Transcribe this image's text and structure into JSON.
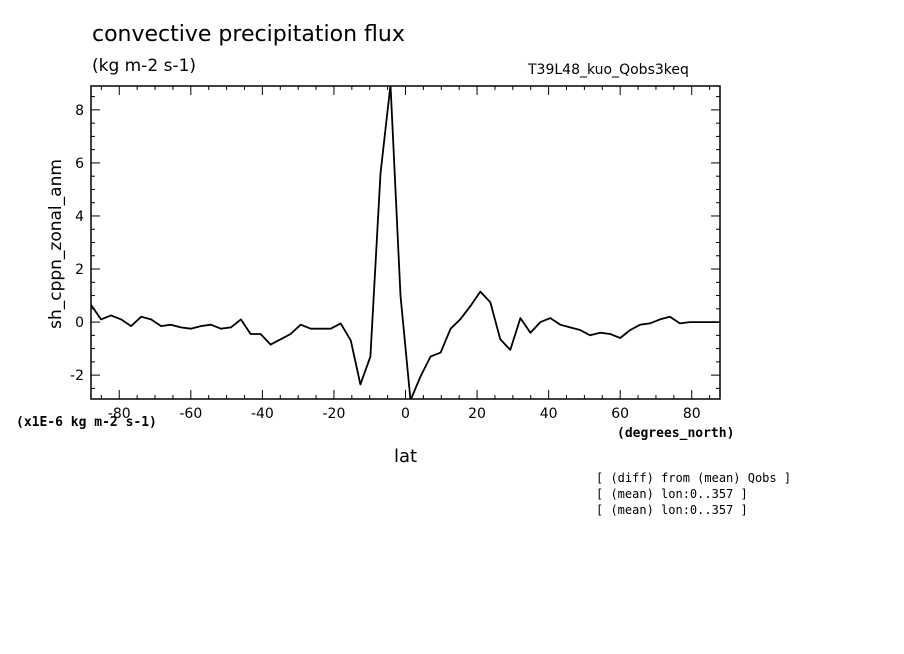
{
  "chart_data": {
    "type": "line",
    "title": "convective precipitation flux",
    "subtitle": "(kg m-2 s-1)",
    "run_label": "T39L48_kuo_Qobs3keq",
    "xlabel": "lat",
    "ylabel": "sh_cppn_zonal_anm",
    "scale_note": "(x1E-6 kg m-2 s-1)",
    "x_unit": "(degrees_north)",
    "notes": [
      "[ (diff) from (mean) Qobs ]",
      "[ (mean) lon:0..357 ]",
      "[ (mean) lon:0..357 ]"
    ],
    "xlim": [
      -87.9,
      87.9
    ],
    "ylim": [
      -2.9,
      8.9
    ],
    "x_ticks": [
      -80,
      -60,
      -40,
      -20,
      0,
      20,
      40,
      60,
      80
    ],
    "x_tick_labels": [
      "-80",
      "-60",
      "-40",
      "-20",
      "0",
      "20",
      "40",
      "60",
      "80"
    ],
    "y_ticks": [
      -2,
      0,
      2,
      4,
      6,
      8
    ],
    "y_tick_labels": [
      "-2",
      "0",
      "2",
      "4",
      "6",
      "8"
    ],
    "grid": false,
    "series": [
      {
        "x": [
          -87.9,
          -85.1,
          -82.3,
          -79.5,
          -76.7,
          -73.9,
          -71.1,
          -68.3,
          -65.6,
          -62.8,
          -60.0,
          -57.2,
          -54.4,
          -51.6,
          -48.8,
          -46.0,
          -43.3,
          -40.5,
          -37.7,
          -34.9,
          -32.1,
          -29.3,
          -26.5,
          -23.7,
          -20.9,
          -18.1,
          -15.3,
          -12.6,
          -9.8,
          -7.0,
          -4.2,
          -1.4,
          1.4,
          4.2,
          7.0,
          9.8,
          12.6,
          15.3,
          18.1,
          20.9,
          23.7,
          26.5,
          29.3,
          32.1,
          34.9,
          37.7,
          40.5,
          43.3,
          46.0,
          48.8,
          51.6,
          54.4,
          57.2,
          60.0,
          62.8,
          65.6,
          68.3,
          71.1,
          73.9,
          76.7,
          79.5,
          82.3,
          85.1,
          87.9
        ],
        "values": [
          0.65,
          0.1,
          0.25,
          0.1,
          -0.15,
          0.2,
          0.1,
          -0.15,
          -0.1,
          -0.2,
          -0.25,
          -0.15,
          -0.1,
          -0.25,
          -0.2,
          0.1,
          -0.45,
          -0.45,
          -0.85,
          -0.65,
          -0.45,
          -0.1,
          -0.25,
          -0.25,
          -0.25,
          -0.05,
          -0.7,
          -2.35,
          -1.3,
          5.6,
          8.95,
          1.0,
          -2.95,
          -2.05,
          -1.3,
          -1.15,
          -0.25,
          0.1,
          0.6,
          1.15,
          0.75,
          -0.65,
          -1.05,
          0.15,
          -0.4,
          0.0,
          0.15,
          -0.1,
          -0.2,
          -0.3,
          -0.5,
          -0.4,
          -0.45,
          -0.6,
          -0.3,
          -0.1,
          -0.05,
          0.1,
          0.2,
          -0.05,
          0.0,
          0.0,
          0.0,
          0.0
        ]
      }
    ]
  }
}
